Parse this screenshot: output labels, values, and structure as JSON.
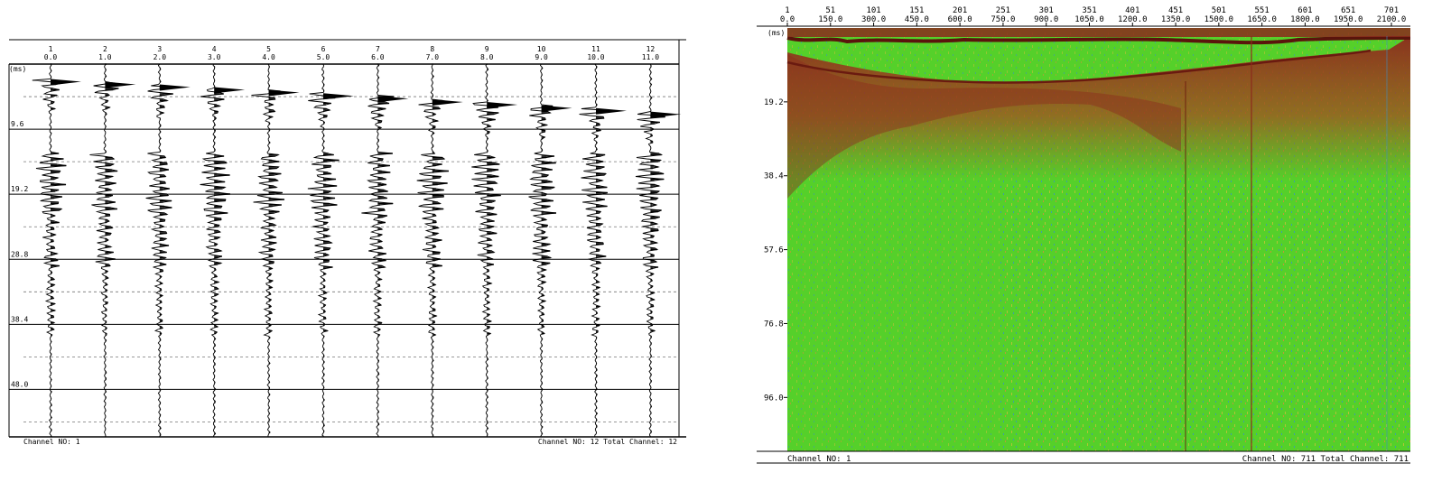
{
  "chart_data": [
    {
      "type": "line",
      "chart_kind": "seismic-wiggle-traces",
      "time_unit_label": "(ms)",
      "channels": [
        "1",
        "2",
        "3",
        "4",
        "5",
        "6",
        "7",
        "8",
        "9",
        "10",
        "11",
        "12"
      ],
      "offsets": [
        "0.0",
        "1.0",
        "2.0",
        "3.0",
        "4.0",
        "5.0",
        "6.0",
        "7.0",
        "8.0",
        "9.0",
        "10.0",
        "11.0"
      ],
      "time_ticks": [
        "9.6",
        "19.2",
        "28.8",
        "38.4",
        "48.0"
      ],
      "time_tick_values": [
        9.6,
        19.2,
        28.8,
        38.4,
        48.0
      ],
      "ylim": [
        0,
        55
      ],
      "first_break_ms": [
        2.2,
        2.6,
        3.0,
        3.4,
        3.8,
        4.3,
        4.7,
        5.2,
        5.6,
        6.1,
        6.5,
        7.0
      ],
      "energy_band_ms": [
        13.0,
        22.0
      ],
      "grid_minor": true,
      "footer_left": "Channel NO: 1",
      "footer_right": "Channel NO: 12 Total Channel: 12"
    },
    {
      "type": "heatmap",
      "chart_kind": "seismic-variable-density-section",
      "time_unit_label": "(ms)",
      "trace_ticks": [
        "1",
        "51",
        "101",
        "151",
        "201",
        "251",
        "301",
        "351",
        "401",
        "451",
        "501",
        "551",
        "601",
        "651",
        "701"
      ],
      "distance_ticks": [
        "0.0",
        "150.0",
        "300.0",
        "450.0",
        "600.0",
        "750.0",
        "900.0",
        "1050.0",
        "1200.0",
        "1350.0",
        "1500.0",
        "1650.0",
        "1800.0",
        "1950.0",
        "2100.0"
      ],
      "time_ticks": [
        "19.2",
        "38.4",
        "57.6",
        "76.8",
        "96.0"
      ],
      "time_tick_values": [
        19.2,
        38.4,
        57.6,
        76.8,
        96.0
      ],
      "ylim": [
        0,
        110
      ],
      "xlim_traces": [
        1,
        711
      ],
      "colors": {
        "background": "#55d02a",
        "high": "#8b2a1c",
        "mid": "#c8c037",
        "low": "#3a8fc8"
      },
      "footer_left": "Channel NO: 1",
      "footer_right": "Channel NO: 711 Total Channel: 711"
    }
  ]
}
